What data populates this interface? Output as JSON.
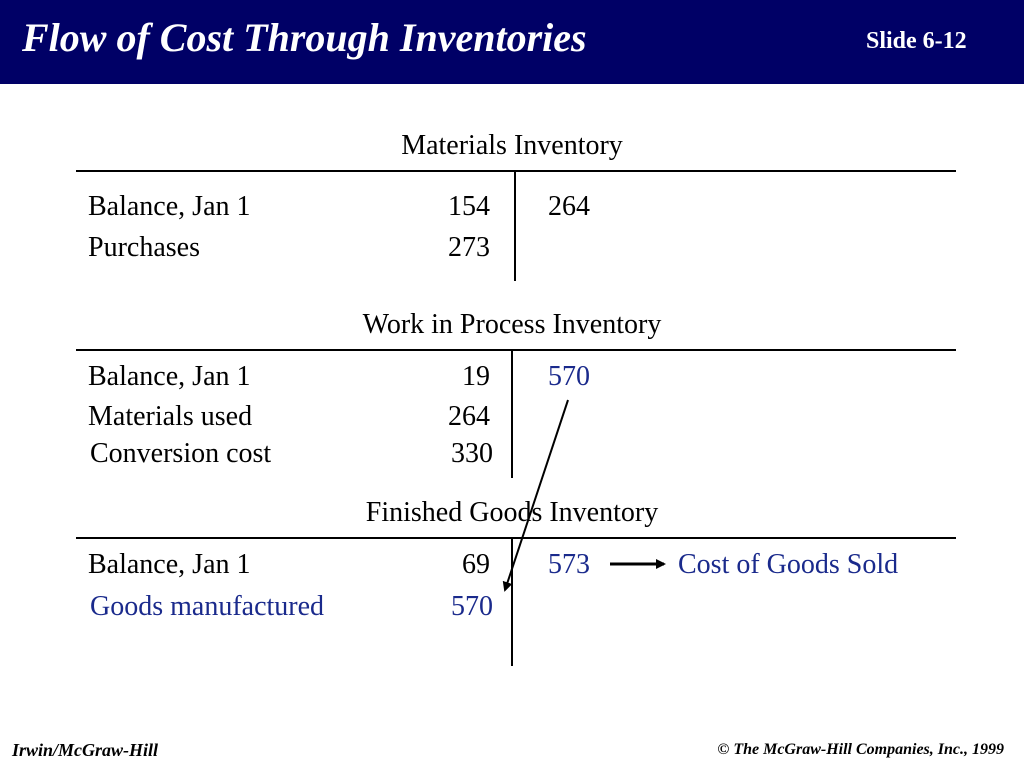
{
  "header": {
    "title": "Flow of Cost Through Inventories",
    "slide_number": "Slide 6-12",
    "background_color": "#000066"
  },
  "materials_inventory": {
    "title": "Materials Inventory",
    "debits": [
      {
        "label": "Balance, Jan 1",
        "amount": "154"
      },
      {
        "label": "Purchases",
        "amount": "273"
      }
    ],
    "credit": "264"
  },
  "work_in_process_inventory": {
    "title": "Work in Process Inventory",
    "debits": [
      {
        "label": "Balance, Jan 1",
        "amount": "19"
      },
      {
        "label": "Materials used",
        "amount": "264"
      },
      {
        "label": "Conversion cost",
        "amount": "330"
      }
    ],
    "credit": "570"
  },
  "finished_goods_inventory": {
    "title": "Finished Goods Inventory",
    "debits": [
      {
        "label": "Balance, Jan 1",
        "amount": "69"
      },
      {
        "label": "Goods manufactured",
        "amount": "570"
      }
    ],
    "credit": "573",
    "transfer_label": "Cost of Goods Sold"
  },
  "footer": {
    "publisher": "Irwin/McGraw-Hill",
    "copyright": "© The McGraw-Hill Companies, Inc., 1999"
  },
  "colors": {
    "highlight_blue": "#1a2a8c"
  }
}
